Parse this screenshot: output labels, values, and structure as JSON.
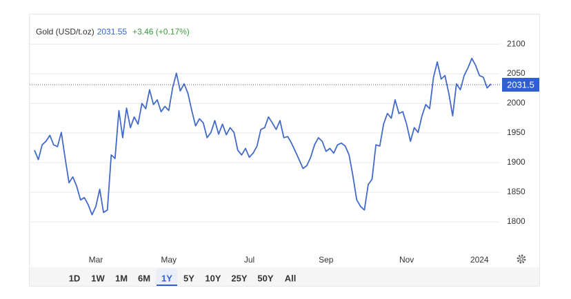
{
  "chart_data": {
    "type": "line",
    "title": "Gold (USD/t.oz)",
    "price": "2031.55",
    "change": "+3.46 (+0.17%)",
    "last_price": 2031.5,
    "color": "#4169c9",
    "categories": [
      null,
      null,
      null,
      null,
      null,
      null,
      null,
      null,
      null,
      null,
      null,
      null,
      null,
      null,
      null,
      null,
      "Mar",
      null,
      null,
      null,
      null,
      null,
      null,
      null,
      null,
      null,
      null,
      null,
      null,
      null,
      null,
      null,
      null,
      null,
      null,
      "May",
      null,
      null,
      null,
      null,
      null,
      null,
      null,
      null,
      null,
      null,
      null,
      null,
      null,
      null,
      null,
      null,
      null,
      null,
      null,
      null,
      "Jul",
      null,
      null,
      null,
      null,
      null,
      null,
      null,
      null,
      null,
      null,
      null,
      null,
      null,
      null,
      null,
      null,
      null,
      null,
      null,
      "Sep",
      null,
      null,
      null,
      null,
      null,
      null,
      null,
      null,
      null,
      null,
      null,
      null,
      null,
      null,
      null,
      null,
      null,
      null,
      null,
      null,
      "Nov",
      null,
      null,
      null,
      null,
      null,
      null,
      null,
      null,
      null,
      null,
      null,
      null,
      null,
      null,
      null,
      null,
      null,
      null,
      "2024",
      null,
      null,
      null
    ],
    "values": [
      1921,
      1905,
      1930,
      1936,
      1946,
      1930,
      1927,
      1951,
      1907,
      1866,
      1876,
      1860,
      1837,
      1841,
      1829,
      1812,
      1826,
      1855,
      1816,
      1820,
      1913,
      1907,
      1988,
      1942,
      1992,
      1959,
      1977,
      1965,
      2000,
      1991,
      2023,
      1998,
      2006,
      1986,
      1995,
      1988,
      2026,
      2051,
      2021,
      2033,
      2017,
      1988,
      1962,
      1974,
      1967,
      1942,
      1951,
      1971,
      1948,
      1965,
      1947,
      1959,
      1951,
      1921,
      1913,
      1924,
      1909,
      1916,
      1928,
      1956,
      1959,
      1977,
      1967,
      1956,
      1971,
      1942,
      1944,
      1933,
      1919,
      1905,
      1890,
      1895,
      1909,
      1930,
      1942,
      1936,
      1919,
      1924,
      1916,
      1930,
      1933,
      1928,
      1913,
      1878,
      1837,
      1826,
      1820,
      1863,
      1872,
      1930,
      1928,
      1965,
      1983,
      1975,
      2006,
      1983,
      1986,
      1965,
      1936,
      1959,
      1951,
      1979,
      1998,
      1991,
      2044,
      2070,
      2041,
      2047,
      2017,
      1979,
      2033,
      2023,
      2047,
      2060,
      2076,
      2064,
      2047,
      2044,
      2026,
      2033
    ],
    "ylim": [
      1750,
      2135
    ],
    "yticks": [
      1800,
      1850,
      1900,
      1950,
      2000,
      2050,
      2100
    ],
    "grid": true,
    "ranges": [
      "1D",
      "1W",
      "1M",
      "6M",
      "1Y",
      "5Y",
      "10Y",
      "25Y",
      "50Y",
      "All"
    ],
    "selected_range_index": 4
  }
}
